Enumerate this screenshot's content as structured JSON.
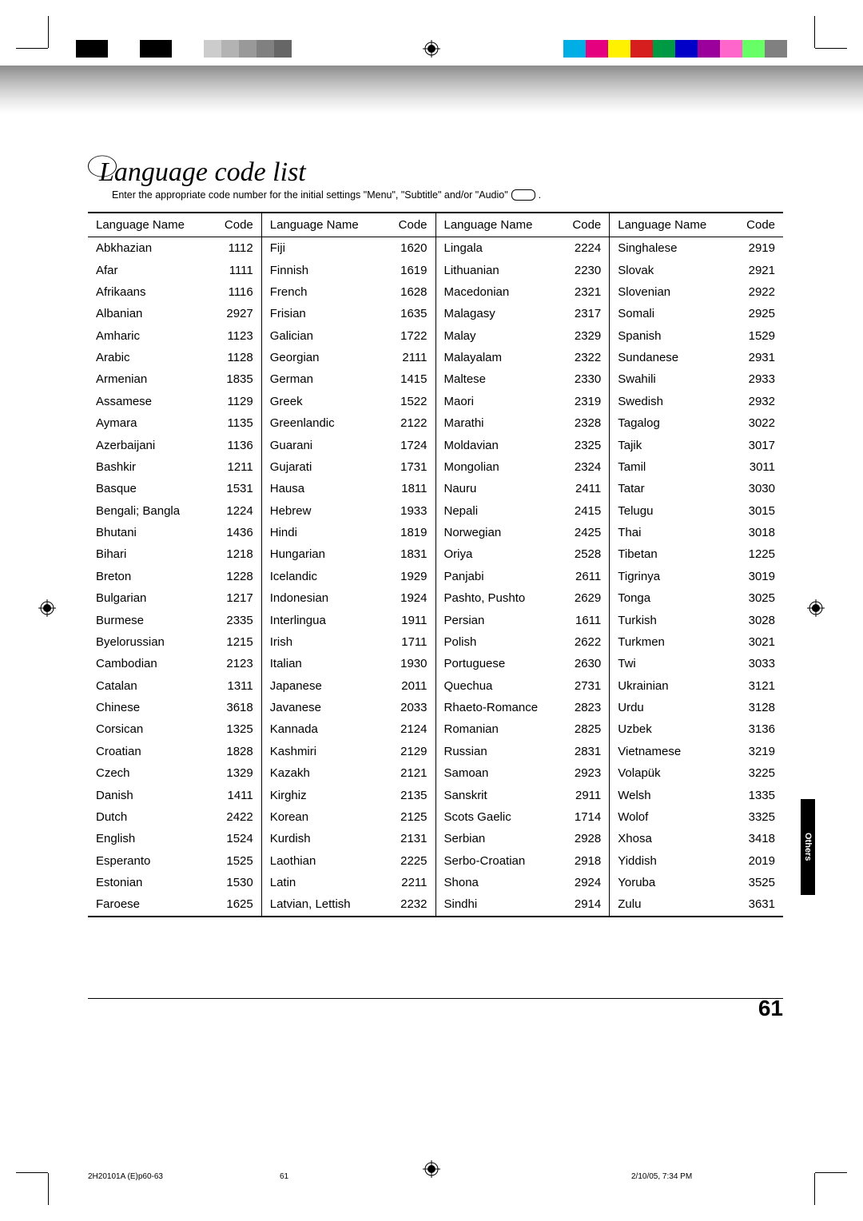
{
  "title": "Language code list",
  "subtitle_prefix": "Enter the appropriate code number for the initial settings \"Menu\", \"Subtitle\" and/or \"Audio\"",
  "subtitle_suffix": ".",
  "header_name": "Language Name",
  "header_code": "Code",
  "side_tab": "Others",
  "page_number": "61",
  "footer_file": "2H20101A (E)p60-63",
  "footer_page": "61",
  "footer_stamp": "2/10/05, 7:34 PM",
  "bw_band_widths": [
    40,
    40,
    40,
    40,
    22,
    22,
    22,
    22,
    22,
    22
  ],
  "bw_band_colors": [
    "#000000",
    "#ffffff",
    "#000000",
    "#ffffff",
    "#cccccc",
    "#b3b3b3",
    "#999999",
    "#808080",
    "#666666",
    "#ffffff"
  ],
  "color_band_widths": [
    28,
    28,
    28,
    28,
    28,
    28,
    28,
    28,
    28,
    28
  ],
  "color_band_colors": [
    "#00aee6",
    "#e4007f",
    "#fff100",
    "#d71e1e",
    "#009944",
    "#0000c9",
    "#9c009c",
    "#ff66cc",
    "#66ff66",
    "#808080"
  ],
  "columns": [
    [
      {
        "name": "Abkhazian",
        "code": "1112"
      },
      {
        "name": "Afar",
        "code": "1111"
      },
      {
        "name": "Afrikaans",
        "code": "1116"
      },
      {
        "name": "Albanian",
        "code": "2927"
      },
      {
        "name": "Amharic",
        "code": "1123"
      },
      {
        "name": "Arabic",
        "code": "1128"
      },
      {
        "name": "Armenian",
        "code": "1835"
      },
      {
        "name": "Assamese",
        "code": "1129"
      },
      {
        "name": "Aymara",
        "code": "1135"
      },
      {
        "name": "Azerbaijani",
        "code": "1136"
      },
      {
        "name": "Bashkir",
        "code": "1211"
      },
      {
        "name": "Basque",
        "code": "1531"
      },
      {
        "name": "Bengali; Bangla",
        "code": "1224"
      },
      {
        "name": "Bhutani",
        "code": "1436"
      },
      {
        "name": "Bihari",
        "code": "1218"
      },
      {
        "name": "Breton",
        "code": "1228"
      },
      {
        "name": "Bulgarian",
        "code": "1217"
      },
      {
        "name": "Burmese",
        "code": "2335"
      },
      {
        "name": "Byelorussian",
        "code": "1215"
      },
      {
        "name": "Cambodian",
        "code": "2123"
      },
      {
        "name": "Catalan",
        "code": "1311"
      },
      {
        "name": "Chinese",
        "code": "3618"
      },
      {
        "name": "Corsican",
        "code": "1325"
      },
      {
        "name": "Croatian",
        "code": "1828"
      },
      {
        "name": "Czech",
        "code": "1329"
      },
      {
        "name": "Danish",
        "code": "1411"
      },
      {
        "name": "Dutch",
        "code": "2422"
      },
      {
        "name": "English",
        "code": "1524"
      },
      {
        "name": "Esperanto",
        "code": "1525"
      },
      {
        "name": "Estonian",
        "code": "1530"
      },
      {
        "name": "Faroese",
        "code": "1625"
      }
    ],
    [
      {
        "name": "Fiji",
        "code": "1620"
      },
      {
        "name": "Finnish",
        "code": "1619"
      },
      {
        "name": "French",
        "code": "1628"
      },
      {
        "name": "Frisian",
        "code": "1635"
      },
      {
        "name": "Galician",
        "code": "1722"
      },
      {
        "name": "Georgian",
        "code": "2111"
      },
      {
        "name": "German",
        "code": "1415"
      },
      {
        "name": "Greek",
        "code": "1522"
      },
      {
        "name": "Greenlandic",
        "code": "2122"
      },
      {
        "name": "Guarani",
        "code": "1724"
      },
      {
        "name": "Gujarati",
        "code": "1731"
      },
      {
        "name": "Hausa",
        "code": "1811"
      },
      {
        "name": "Hebrew",
        "code": "1933"
      },
      {
        "name": "Hindi",
        "code": "1819"
      },
      {
        "name": "Hungarian",
        "code": "1831"
      },
      {
        "name": "Icelandic",
        "code": "1929"
      },
      {
        "name": "Indonesian",
        "code": "1924"
      },
      {
        "name": "Interlingua",
        "code": "1911"
      },
      {
        "name": "Irish",
        "code": "1711"
      },
      {
        "name": "Italian",
        "code": "1930"
      },
      {
        "name": "Japanese",
        "code": "2011"
      },
      {
        "name": "Javanese",
        "code": "2033"
      },
      {
        "name": "Kannada",
        "code": "2124"
      },
      {
        "name": "Kashmiri",
        "code": "2129"
      },
      {
        "name": "Kazakh",
        "code": "2121"
      },
      {
        "name": "Kirghiz",
        "code": "2135"
      },
      {
        "name": "Korean",
        "code": "2125"
      },
      {
        "name": "Kurdish",
        "code": "2131"
      },
      {
        "name": "Laothian",
        "code": "2225"
      },
      {
        "name": "Latin",
        "code": "2211"
      },
      {
        "name": "Latvian, Lettish",
        "code": "2232"
      }
    ],
    [
      {
        "name": "Lingala",
        "code": "2224"
      },
      {
        "name": "Lithuanian",
        "code": "2230"
      },
      {
        "name": "Macedonian",
        "code": "2321"
      },
      {
        "name": "Malagasy",
        "code": "2317"
      },
      {
        "name": "Malay",
        "code": "2329"
      },
      {
        "name": "Malayalam",
        "code": "2322"
      },
      {
        "name": "Maltese",
        "code": "2330"
      },
      {
        "name": "Maori",
        "code": "2319"
      },
      {
        "name": "Marathi",
        "code": "2328"
      },
      {
        "name": "Moldavian",
        "code": "2325"
      },
      {
        "name": "Mongolian",
        "code": "2324"
      },
      {
        "name": "Nauru",
        "code": "2411"
      },
      {
        "name": "Nepali",
        "code": "2415"
      },
      {
        "name": "Norwegian",
        "code": "2425"
      },
      {
        "name": "Oriya",
        "code": "2528"
      },
      {
        "name": "Panjabi",
        "code": "2611"
      },
      {
        "name": "Pashto, Pushto",
        "code": "2629"
      },
      {
        "name": "Persian",
        "code": "1611"
      },
      {
        "name": "Polish",
        "code": "2622"
      },
      {
        "name": "Portuguese",
        "code": "2630"
      },
      {
        "name": "Quechua",
        "code": "2731"
      },
      {
        "name": "Rhaeto-Romance",
        "code": "2823"
      },
      {
        "name": "Romanian",
        "code": "2825"
      },
      {
        "name": "Russian",
        "code": "2831"
      },
      {
        "name": "Samoan",
        "code": "2923"
      },
      {
        "name": "Sanskrit",
        "code": "2911"
      },
      {
        "name": "Scots Gaelic",
        "code": "1714"
      },
      {
        "name": "Serbian",
        "code": "2928"
      },
      {
        "name": "Serbo-Croatian",
        "code": "2918"
      },
      {
        "name": "Shona",
        "code": "2924"
      },
      {
        "name": "Sindhi",
        "code": "2914"
      }
    ],
    [
      {
        "name": "Singhalese",
        "code": "2919"
      },
      {
        "name": "Slovak",
        "code": "2921"
      },
      {
        "name": "Slovenian",
        "code": "2922"
      },
      {
        "name": "Somali",
        "code": "2925"
      },
      {
        "name": "Spanish",
        "code": "1529"
      },
      {
        "name": "Sundanese",
        "code": "2931"
      },
      {
        "name": "Swahili",
        "code": "2933"
      },
      {
        "name": "Swedish",
        "code": "2932"
      },
      {
        "name": "Tagalog",
        "code": "3022"
      },
      {
        "name": "Tajik",
        "code": "3017"
      },
      {
        "name": "Tamil",
        "code": "3011"
      },
      {
        "name": "Tatar",
        "code": "3030"
      },
      {
        "name": "Telugu",
        "code": "3015"
      },
      {
        "name": "Thai",
        "code": "3018"
      },
      {
        "name": "Tibetan",
        "code": "1225"
      },
      {
        "name": "Tigrinya",
        "code": "3019"
      },
      {
        "name": "Tonga",
        "code": "3025"
      },
      {
        "name": "Turkish",
        "code": "3028"
      },
      {
        "name": "Turkmen",
        "code": "3021"
      },
      {
        "name": "Twi",
        "code": "3033"
      },
      {
        "name": "Ukrainian",
        "code": "3121"
      },
      {
        "name": "Urdu",
        "code": "3128"
      },
      {
        "name": "Uzbek",
        "code": "3136"
      },
      {
        "name": "Vietnamese",
        "code": "3219"
      },
      {
        "name": "Volapük",
        "code": "3225"
      },
      {
        "name": "Welsh",
        "code": "1335"
      },
      {
        "name": "Wolof",
        "code": "3325"
      },
      {
        "name": "Xhosa",
        "code": "3418"
      },
      {
        "name": "Yiddish",
        "code": "2019"
      },
      {
        "name": "Yoruba",
        "code": "3525"
      },
      {
        "name": "Zulu",
        "code": "3631"
      }
    ]
  ]
}
